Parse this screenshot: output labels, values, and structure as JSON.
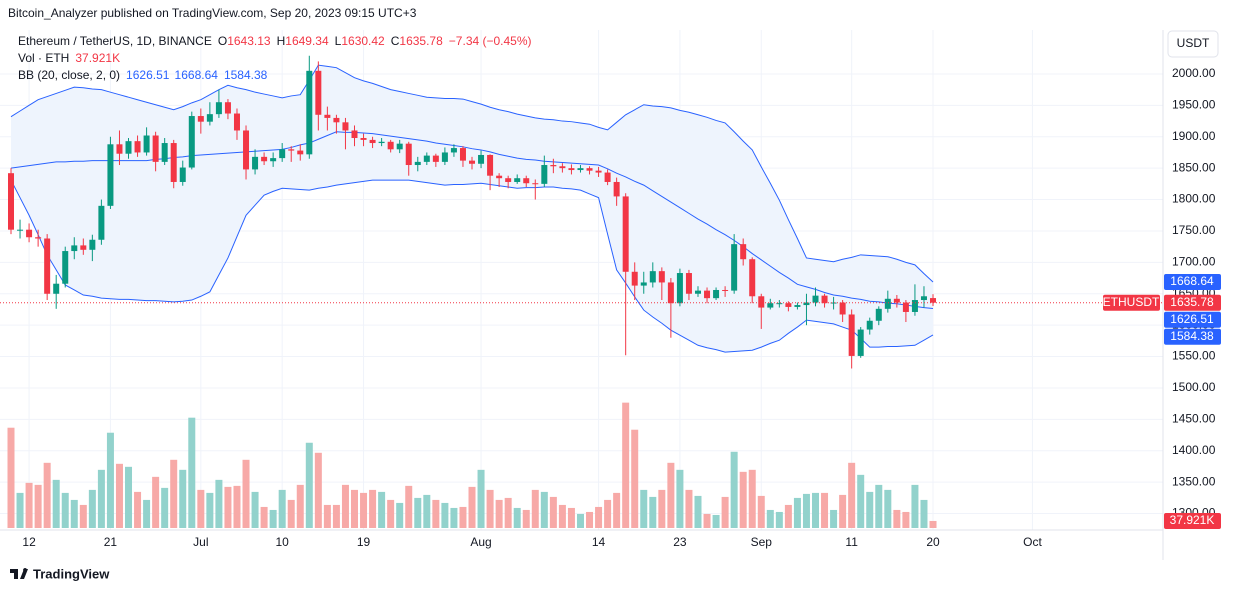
{
  "attribution": "Bitcoin_Analyzer published on TradingView.com, Sep 20, 2023 09:15 UTC+3",
  "footer": "TradingView",
  "currency_button": "USDT",
  "chart_data": {
    "type": "candlestick",
    "title": "Ethereum / TetherUS, 1D, BINANCE",
    "ohlc_labels": [
      "O",
      "H",
      "L",
      "C"
    ],
    "change_label": "−7.34 (−0.45%)",
    "volume_title": "Vol · ETH",
    "bb_title": "BB (20, close, 2, 0)",
    "xlim": [
      0,
      127
    ],
    "xticks": [
      {
        "value": 2,
        "label": "12"
      },
      {
        "value": 11,
        "label": "21"
      },
      {
        "value": 21,
        "label": "Jul"
      },
      {
        "value": 30,
        "label": "10"
      },
      {
        "value": 39,
        "label": "19"
      },
      {
        "value": 52,
        "label": "Aug"
      },
      {
        "value": 65,
        "label": "14"
      },
      {
        "value": 74,
        "label": "23"
      },
      {
        "value": 83,
        "label": "Sep"
      },
      {
        "value": 93,
        "label": "11"
      },
      {
        "value": 102,
        "label": "20"
      },
      {
        "value": 113,
        "label": "Oct"
      }
    ],
    "ylim": [
      1277,
      2070
    ],
    "yticks": [
      {
        "value": 1300,
        "label": "1300.00"
      },
      {
        "value": 1350,
        "label": "1350.00"
      },
      {
        "value": 1400,
        "label": "1400.00"
      },
      {
        "value": 1450,
        "label": "1450.00"
      },
      {
        "value": 1500,
        "label": "1500.00"
      },
      {
        "value": 1550,
        "label": "1550.00"
      },
      {
        "value": 1600,
        "label": "1600.00"
      },
      {
        "value": 1650,
        "label": "1650.00"
      },
      {
        "value": 1700,
        "label": "1700.00"
      },
      {
        "value": 1750,
        "label": "1750.00"
      },
      {
        "value": 1800,
        "label": "1800.00"
      },
      {
        "value": 1850,
        "label": "1850.00"
      },
      {
        "value": 1900,
        "label": "1900.00"
      },
      {
        "value": 1950,
        "label": "1950.00"
      },
      {
        "value": 2000,
        "label": "2000.00"
      }
    ],
    "grid": true,
    "up_color": "#089981",
    "down_color": "#f23645",
    "x": [
      0,
      1,
      2,
      3,
      4,
      5,
      6,
      7,
      8,
      9,
      10,
      11,
      12,
      13,
      14,
      15,
      16,
      17,
      18,
      19,
      20,
      21,
      22,
      23,
      24,
      25,
      26,
      27,
      28,
      29,
      30,
      31,
      32,
      33,
      34,
      35,
      36,
      37,
      38,
      39,
      40,
      41,
      42,
      43,
      44,
      45,
      46,
      47,
      48,
      49,
      50,
      51,
      52,
      53,
      54,
      55,
      56,
      57,
      58,
      59,
      60,
      61,
      62,
      63,
      64,
      65,
      66,
      67,
      68,
      69,
      70,
      71,
      72,
      73,
      74,
      75,
      76,
      77,
      78,
      79,
      80,
      81,
      82,
      83,
      84,
      85,
      86,
      87,
      88,
      89,
      90,
      91,
      92,
      93,
      94,
      95,
      96,
      97,
      98,
      99,
      100,
      101,
      102
    ],
    "series": [
      {
        "name": "ETHUSDT",
        "open": [
          1842,
          1752,
          1752,
          1740,
          1738,
          1650,
          1666,
          1718,
          1727,
          1720,
          1736,
          1790,
          1888,
          1873,
          1893,
          1875,
          1902,
          1860,
          1890,
          1828,
          1851,
          1933,
          1924,
          1936,
          1955,
          1937,
          1910,
          1848,
          1868,
          1861,
          1866,
          1880,
          1878,
          1872,
          2005,
          1935,
          1930,
          1923,
          1910,
          1898,
          1895,
          1890,
          1892,
          1880,
          1889,
          1855,
          1860,
          1870,
          1860,
          1875,
          1882,
          1862,
          1857,
          1871,
          1838,
          1834,
          1828,
          1834,
          1826,
          1825,
          1855,
          1853,
          1850,
          1847,
          1850,
          1846,
          1843,
          1828,
          1805,
          1685,
          1663,
          1668,
          1686,
          1668,
          1635,
          1683,
          1650,
          1655,
          1643,
          1656,
          1655,
          1729,
          1705,
          1646,
          1628,
          1635,
          1635,
          1629,
          1632,
          1636,
          1647,
          1635,
          1636,
          1617,
          1551,
          1593,
          1607,
          1626,
          1642,
          1636,
          1621,
          1640,
          1643.13
        ],
        "high": [
          1850,
          1768,
          1762,
          1752,
          1745,
          1680,
          1725,
          1740,
          1738,
          1744,
          1800,
          1900,
          1910,
          1898,
          1902,
          1915,
          1908,
          1898,
          1895,
          1862,
          1940,
          1945,
          1955,
          1975,
          1960,
          1945,
          1918,
          1880,
          1875,
          1875,
          1890,
          1885,
          1888,
          2029,
          2020,
          1948,
          1935,
          1930,
          1918,
          1905,
          1900,
          1898,
          1895,
          1895,
          1892,
          1868,
          1875,
          1873,
          1883,
          1888,
          1885,
          1868,
          1878,
          1872,
          1842,
          1838,
          1840,
          1838,
          1832,
          1870,
          1865,
          1858,
          1856,
          1855,
          1853,
          1852,
          1848,
          1835,
          1810,
          1700,
          1685,
          1700,
          1692,
          1675,
          1690,
          1688,
          1662,
          1660,
          1660,
          1662,
          1745,
          1738,
          1708,
          1650,
          1642,
          1640,
          1638,
          1636,
          1650,
          1660,
          1650,
          1645,
          1640,
          1625,
          1597,
          1612,
          1630,
          1655,
          1648,
          1640,
          1665,
          1662,
          1649.34
        ],
        "low": [
          1745,
          1738,
          1732,
          1725,
          1640,
          1626,
          1660,
          1705,
          1712,
          1702,
          1728,
          1785,
          1855,
          1865,
          1868,
          1870,
          1845,
          1855,
          1818,
          1822,
          1848,
          1905,
          1918,
          1930,
          1928,
          1895,
          1832,
          1840,
          1855,
          1852,
          1860,
          1860,
          1862,
          1865,
          1910,
          1910,
          1905,
          1880,
          1885,
          1885,
          1882,
          1885,
          1875,
          1874,
          1838,
          1845,
          1855,
          1852,
          1855,
          1868,
          1852,
          1848,
          1850,
          1815,
          1820,
          1818,
          1825,
          1820,
          1800,
          1820,
          1842,
          1843,
          1840,
          1843,
          1840,
          1836,
          1823,
          1790,
          1552,
          1640,
          1650,
          1660,
          1640,
          1580,
          1630,
          1640,
          1645,
          1635,
          1640,
          1645,
          1650,
          1695,
          1635,
          1594,
          1625,
          1628,
          1622,
          1625,
          1600,
          1630,
          1628,
          1625,
          1605,
          1531,
          1548,
          1585,
          1600,
          1620,
          1628,
          1605,
          1615,
          1628,
          1630.42
        ],
        "close": [
          1752,
          1752,
          1740,
          1738,
          1650,
          1666,
          1718,
          1727,
          1720,
          1736,
          1790,
          1888,
          1873,
          1893,
          1875,
          1902,
          1860,
          1890,
          1828,
          1851,
          1933,
          1924,
          1936,
          1955,
          1937,
          1910,
          1848,
          1868,
          1861,
          1866,
          1880,
          1878,
          1872,
          2005,
          1935,
          1930,
          1923,
          1910,
          1898,
          1895,
          1890,
          1892,
          1880,
          1889,
          1855,
          1860,
          1870,
          1860,
          1875,
          1882,
          1862,
          1857,
          1871,
          1838,
          1834,
          1828,
          1834,
          1826,
          1825,
          1855,
          1853,
          1850,
          1847,
          1850,
          1846,
          1843,
          1828,
          1805,
          1685,
          1663,
          1668,
          1686,
          1668,
          1635,
          1683,
          1650,
          1655,
          1643,
          1656,
          1655,
          1729,
          1705,
          1646,
          1628,
          1635,
          1635,
          1629,
          1632,
          1636,
          1647,
          1635,
          1636,
          1617,
          1551,
          1593,
          1607,
          1626,
          1642,
          1636,
          1621,
          1640,
          1646,
          1635.78
        ]
      }
    ],
    "volume": {
      "ylim": [
        0,
        700000
      ],
      "up_color": "#92d2cc",
      "down_color": "#f7a9a7",
      "last_value_label": "37.921K",
      "values": [
        540000,
        189000,
        243000,
        232200,
        351000,
        259200,
        189000,
        151200,
        124200,
        205200,
        313200,
        513000,
        345600,
        329400,
        194400,
        151200,
        275400,
        216000,
        367200,
        313200,
        594000,
        205200,
        189000,
        259200,
        221400,
        226800,
        367200,
        194400,
        113400,
        97200,
        205200,
        151200,
        232200,
        459000,
        405000,
        124200,
        124200,
        232200,
        205200,
        189000,
        205200,
        194400,
        151200,
        135000,
        226800,
        162000,
        178200,
        151200,
        135000,
        108000,
        113400,
        221400,
        313200,
        205200,
        151200,
        162000,
        108000,
        97200,
        205200,
        194400,
        167400,
        124200,
        108000,
        75600,
        86400,
        113400,
        151200,
        189000,
        675000,
        529200,
        205200,
        167400,
        205200,
        351000,
        313200,
        205200,
        172800,
        75600,
        70200,
        167400,
        410400,
        302400,
        313200,
        172800,
        97200,
        86400,
        124200,
        162000,
        183600,
        189000,
        189000,
        97200,
        178200,
        351000,
        286200,
        194400,
        232200,
        205200,
        97200,
        86400,
        232200,
        151200,
        37921
      ]
    },
    "bb": {
      "color": "#2962ff",
      "fill": "#eef4fd",
      "upper": [
        1932,
        1941,
        1950,
        1959,
        1964,
        1969,
        1974,
        1979,
        1978,
        1976,
        1975,
        1971,
        1967,
        1963,
        1959,
        1955,
        1951,
        1947,
        1943,
        1948,
        1954,
        1959,
        1967,
        1975,
        1982,
        1978,
        1975,
        1971,
        1968,
        1965,
        1962,
        1965,
        1967,
        1990,
        2014,
        2012,
        2010,
        2002,
        1994,
        1989,
        1985,
        1980,
        1975,
        1972,
        1969,
        1966,
        1963,
        1962,
        1961,
        1961,
        1960,
        1956,
        1952,
        1947,
        1943,
        1940,
        1936,
        1933,
        1930,
        1928,
        1927,
        1925,
        1924,
        1922,
        1920,
        1915,
        1911,
        1923,
        1935,
        1943,
        1951,
        1949,
        1948,
        1946,
        1942,
        1939,
        1935,
        1931,
        1926,
        1922,
        1908,
        1893,
        1879,
        1852,
        1826,
        1799,
        1768,
        1738,
        1707,
        1705,
        1703,
        1701,
        1705,
        1708,
        1712,
        1711,
        1710,
        1709,
        1705,
        1700,
        1696,
        1682,
        1668.64
      ],
      "middle": [
        1850,
        1852,
        1854,
        1856,
        1858,
        1860,
        1860,
        1861,
        1861,
        1862,
        1862,
        1862,
        1862,
        1862,
        1862,
        1862,
        1864,
        1865,
        1867,
        1868,
        1870,
        1871,
        1872,
        1873,
        1874,
        1875,
        1876,
        1877,
        1878,
        1879,
        1880,
        1883,
        1887,
        1890,
        1896,
        1902,
        1908,
        1907,
        1907,
        1906,
        1905,
        1903,
        1901,
        1899,
        1897,
        1895,
        1893,
        1890,
        1888,
        1886,
        1884,
        1881,
        1879,
        1876,
        1872,
        1869,
        1866,
        1864,
        1863,
        1861,
        1860,
        1859,
        1858,
        1857,
        1856,
        1855,
        1849,
        1842,
        1836,
        1829,
        1823,
        1814,
        1805,
        1796,
        1787,
        1778,
        1769,
        1761,
        1752,
        1744,
        1735,
        1725,
        1714,
        1704,
        1694,
        1684,
        1675,
        1665,
        1661,
        1657,
        1652,
        1648,
        1646,
        1643,
        1641,
        1638,
        1637,
        1635,
        1634,
        1632,
        1630,
        1628,
        1626.51
      ],
      "lower": [
        1831,
        1803,
        1775,
        1744,
        1712,
        1688,
        1664,
        1656,
        1648,
        1646,
        1643,
        1642,
        1641,
        1641,
        1640,
        1639,
        1639,
        1638,
        1637,
        1638,
        1640,
        1646,
        1653,
        1680,
        1707,
        1741,
        1775,
        1791,
        1807,
        1813,
        1818,
        1817,
        1816,
        1815,
        1818,
        1820,
        1823,
        1825,
        1827,
        1829,
        1831,
        1831,
        1831,
        1831,
        1831,
        1829,
        1827,
        1825,
        1823,
        1824,
        1824,
        1825,
        1826,
        1824,
        1822,
        1820,
        1818,
        1819,
        1819,
        1820,
        1820,
        1818,
        1817,
        1815,
        1809,
        1803,
        1745,
        1688,
        1667,
        1645,
        1624,
        1613,
        1603,
        1592,
        1584,
        1576,
        1568,
        1564,
        1561,
        1557,
        1558,
        1559,
        1560,
        1565,
        1571,
        1576,
        1587,
        1597,
        1608,
        1606,
        1604,
        1602,
        1597,
        1592,
        1579,
        1565,
        1565,
        1566,
        1566,
        1567,
        1568,
        1576,
        1584.38
      ]
    }
  }
}
